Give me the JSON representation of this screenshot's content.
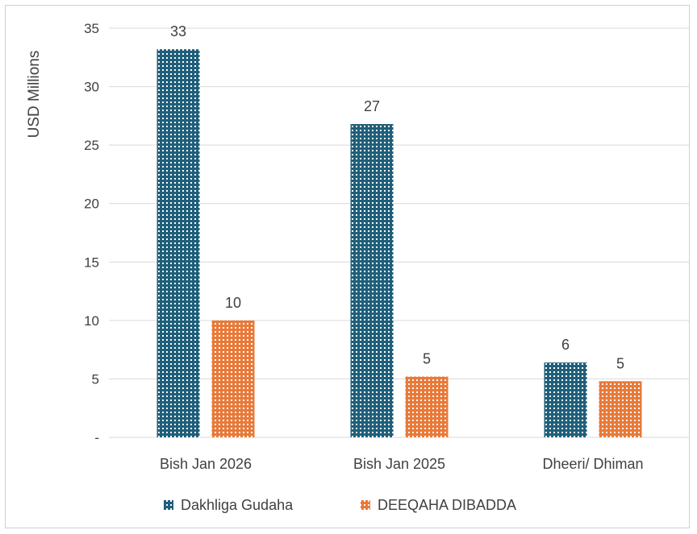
{
  "chart_data": {
    "type": "bar",
    "title": "",
    "xlabel": "",
    "ylabel": "USD Millions",
    "ylim": [
      0,
      35
    ],
    "yticks": [
      0,
      5,
      10,
      15,
      20,
      25,
      30,
      35
    ],
    "ytick_labels": [
      "-",
      "5",
      "10",
      "15",
      "20",
      "25",
      "30",
      "35"
    ],
    "categories": [
      "Bish Jan 2026",
      "Bish Jan 2025",
      "Dheeri/ Dhiman"
    ],
    "series": [
      {
        "name": "Dakhliga Gudaha",
        "values": [
          33.2,
          26.8,
          6.4
        ],
        "labels": [
          "33",
          "27",
          "6"
        ],
        "color": "#1f5f7a"
      },
      {
        "name": "DEEQAHA DIBADDA",
        "values": [
          10.0,
          5.2,
          4.8
        ],
        "labels": [
          "10",
          "5",
          "5"
        ],
        "color": "#e87a3a"
      }
    ],
    "grid": true,
    "legend_position": "bottom"
  }
}
